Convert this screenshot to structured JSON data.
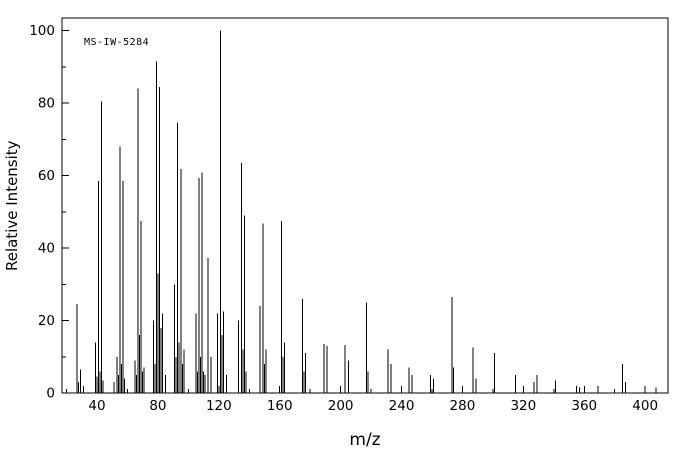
{
  "figure": {
    "background": "#ffffff",
    "foreground": "#000000",
    "annotation": "MS-IW-5284",
    "xlabel": "m/z",
    "ylabel": "Relative Intensity"
  },
  "chart_data": {
    "type": "bar",
    "subtype": "mass-spectrum-stick-plot",
    "title": "",
    "xlabel": "m/z",
    "ylabel": "Relative Intensity",
    "annotation": "MS-IW-5284",
    "color": "#000000",
    "xlim": [
      17,
      415
    ],
    "ylim": [
      0,
      103.5
    ],
    "x_major_ticks": [
      40,
      80,
      120,
      160,
      200,
      240,
      280,
      320,
      360,
      400
    ],
    "x_minor_start": 20,
    "x_minor_step": 20,
    "y_major_ticks": [
      0,
      20,
      40,
      60,
      80,
      100
    ],
    "y_major_step": 20,
    "y_minor_step": 10,
    "grid": false,
    "legend": false,
    "peaks": [
      [
        27,
        24.5
      ],
      [
        28,
        3
      ],
      [
        29,
        6.5
      ],
      [
        31,
        2
      ],
      [
        39,
        14
      ],
      [
        40,
        4.5
      ],
      [
        41,
        58.5
      ],
      [
        42,
        6
      ],
      [
        43,
        80.5
      ],
      [
        44,
        3.5
      ],
      [
        51,
        3
      ],
      [
        53,
        10
      ],
      [
        54,
        5
      ],
      [
        55,
        68
      ],
      [
        56,
        8
      ],
      [
        57,
        58.5
      ],
      [
        58,
        4
      ],
      [
        65,
        9
      ],
      [
        66,
        5
      ],
      [
        67,
        84
      ],
      [
        68,
        16
      ],
      [
        69,
        47.5
      ],
      [
        70,
        6
      ],
      [
        71,
        7
      ],
      [
        77,
        20
      ],
      [
        78,
        8
      ],
      [
        79,
        91.5
      ],
      [
        80,
        33
      ],
      [
        81,
        84.5
      ],
      [
        82,
        18
      ],
      [
        83,
        22
      ],
      [
        85,
        5
      ],
      [
        91,
        30
      ],
      [
        92,
        10
      ],
      [
        93,
        74.7
      ],
      [
        94,
        14
      ],
      [
        95,
        61.8
      ],
      [
        96,
        8
      ],
      [
        97,
        12
      ],
      [
        105,
        22
      ],
      [
        106,
        6
      ],
      [
        107,
        59.3
      ],
      [
        108,
        10
      ],
      [
        109,
        60.8
      ],
      [
        110,
        6
      ],
      [
        111,
        5
      ],
      [
        113,
        37.2
      ],
      [
        115,
        10
      ],
      [
        119,
        22
      ],
      [
        121,
        100
      ],
      [
        122,
        16
      ],
      [
        123,
        22.5
      ],
      [
        125,
        5
      ],
      [
        133,
        20
      ],
      [
        135,
        63.5
      ],
      [
        136,
        12
      ],
      [
        137,
        49
      ],
      [
        138,
        6
      ],
      [
        147,
        24
      ],
      [
        149,
        46.8
      ],
      [
        150,
        8
      ],
      [
        151,
        12
      ],
      [
        161,
        47.5
      ],
      [
        162,
        10
      ],
      [
        163,
        14
      ],
      [
        175,
        26
      ],
      [
        176,
        6
      ],
      [
        177,
        11
      ],
      [
        189,
        13.5
      ],
      [
        191,
        13
      ],
      [
        203,
        13.2
      ],
      [
        205,
        9
      ],
      [
        217,
        25
      ],
      [
        218,
        6
      ],
      [
        231,
        12
      ],
      [
        233,
        8
      ],
      [
        245,
        7
      ],
      [
        247,
        5
      ],
      [
        259,
        5
      ],
      [
        261,
        4
      ],
      [
        273,
        26.5
      ],
      [
        274,
        7
      ],
      [
        287,
        12.5
      ],
      [
        289,
        4
      ],
      [
        301,
        11
      ],
      [
        315,
        5
      ],
      [
        327,
        3
      ],
      [
        329,
        5
      ],
      [
        341,
        3.5
      ],
      [
        355,
        2
      ],
      [
        357,
        1.5
      ],
      [
        369,
        2
      ],
      [
        385,
        8
      ],
      [
        387,
        3
      ],
      [
        407,
        1.5
      ]
    ]
  }
}
